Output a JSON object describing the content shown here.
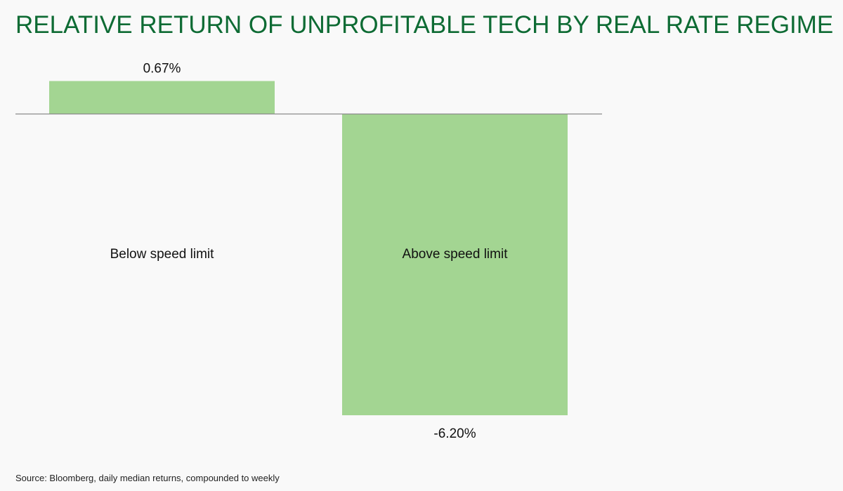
{
  "title": "RELATIVE RETURN OF UNPROFITABLE TECH BY REAL RATE REGIME",
  "source": "Source: Bloomberg, daily median returns, compounded to weekly",
  "colors": {
    "title": "#0e6b34",
    "bar": "#a3d592",
    "axis": "#8c8c8c",
    "text": "#111111",
    "background": "#f9f9f9"
  },
  "chart_data": {
    "type": "bar",
    "title": "RELATIVE RETURN OF UNPROFITABLE TECH BY REAL RATE REGIME",
    "xlabel": "",
    "ylabel": "",
    "categories": [
      "Below speed limit",
      "Above speed limit"
    ],
    "values": [
      0.67,
      -6.2
    ],
    "value_labels": [
      "0.67%",
      "-6.20%"
    ],
    "unit": "%",
    "grid": false,
    "legend": "none",
    "category_labels_position": "middle"
  }
}
